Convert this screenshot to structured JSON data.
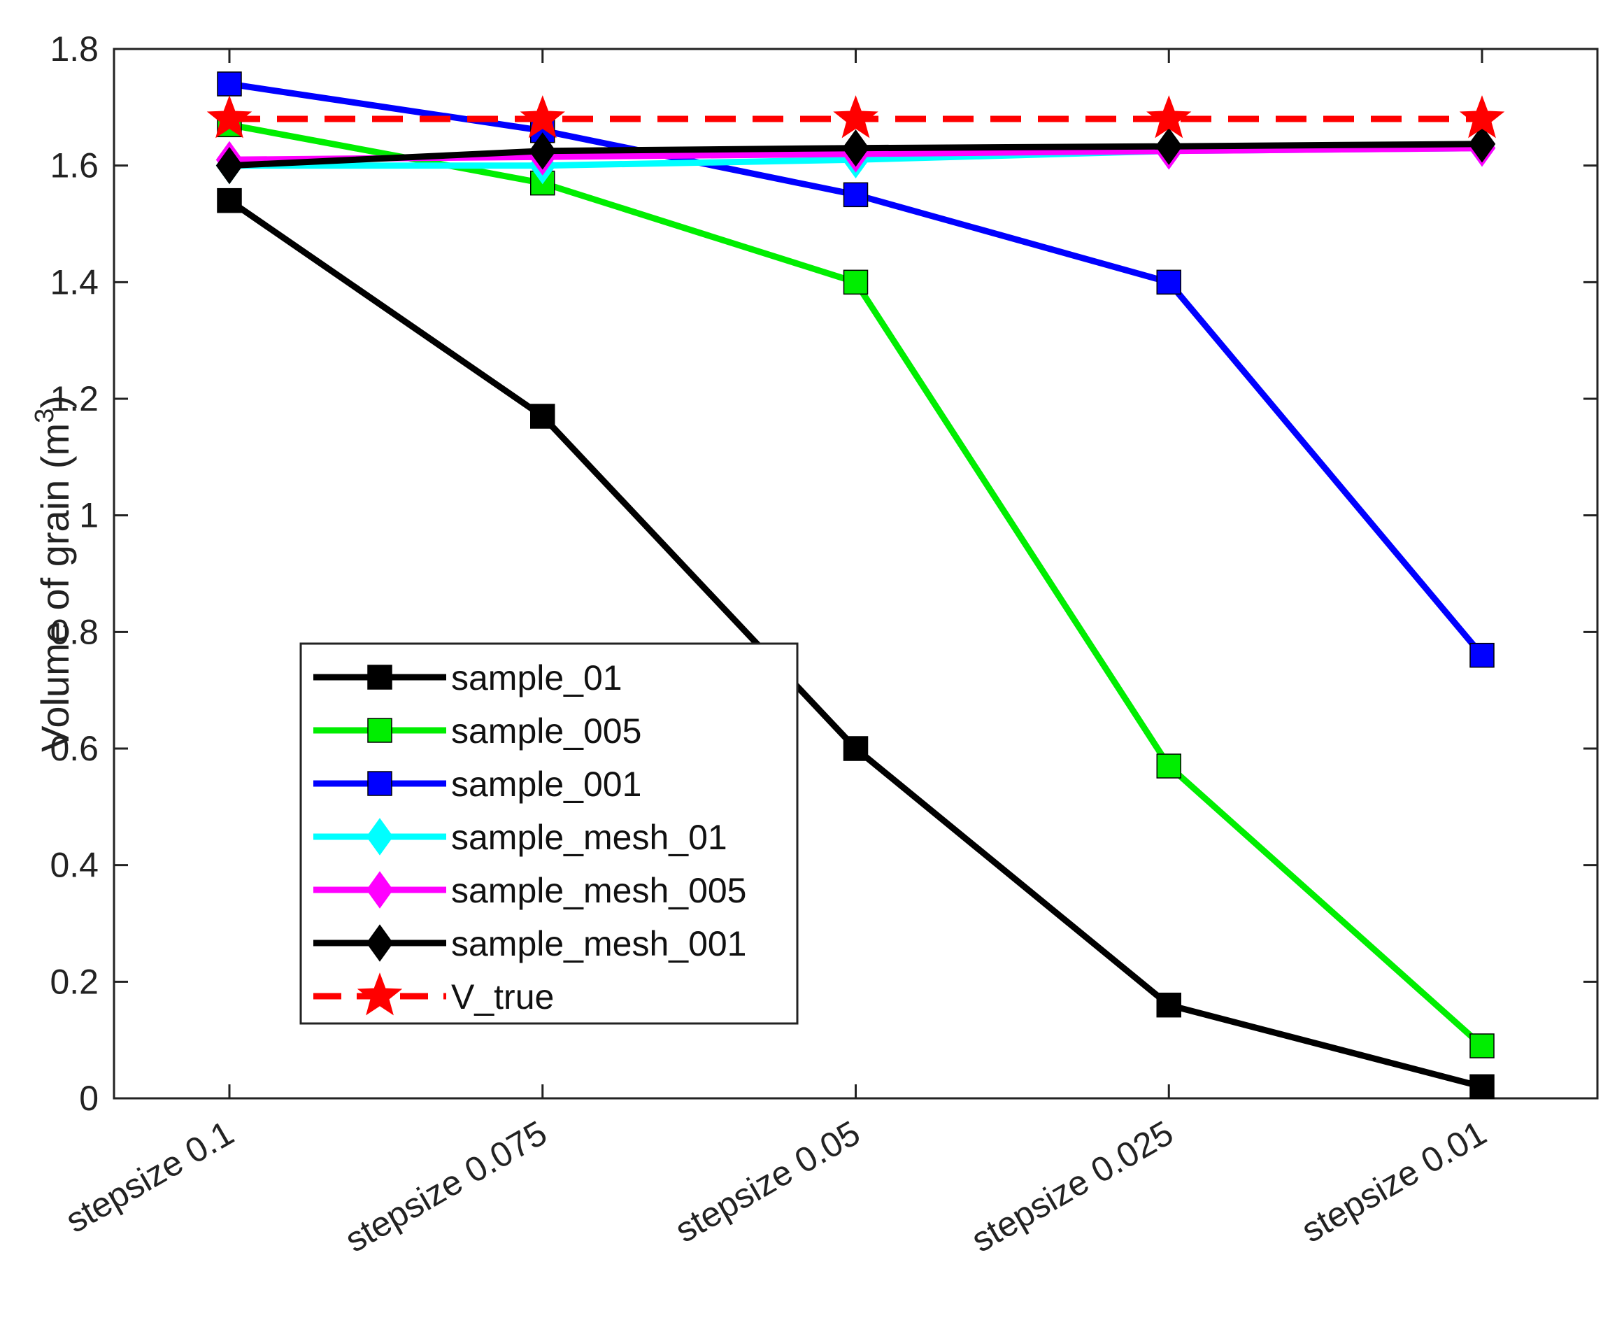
{
  "chart_data": {
    "type": "line",
    "title": "",
    "xlabel": "",
    "ylabel": "Volume of grain (m",
    "ylabel_superscript": "3",
    "ylabel_close": ")",
    "categories": [
      "stepsize 0.1",
      "stepsize 0.075",
      "stepsize 0.05",
      "stepsize 0.025",
      "stepsize 0.01"
    ],
    "ylim": [
      0,
      1.8
    ],
    "yticks": [
      0,
      0.2,
      0.4,
      0.6,
      0.8,
      1,
      1.2,
      1.4,
      1.6,
      1.8
    ],
    "ytick_labels": [
      "0",
      "0.2",
      "0.4",
      "0.6",
      "0.8",
      "1",
      "1.2",
      "1.4",
      "1.6",
      "1.8"
    ],
    "grid": false,
    "legend_position": "lower-left",
    "series": [
      {
        "name": "sample_01",
        "values": [
          1.54,
          1.17,
          0.6,
          0.16,
          0.02
        ],
        "color": "#000000",
        "marker": "square",
        "dashed": false
      },
      {
        "name": "sample_005",
        "values": [
          1.67,
          1.57,
          1.4,
          0.57,
          0.09
        ],
        "color": "#00ee00",
        "marker": "square",
        "dashed": false
      },
      {
        "name": "sample_001",
        "values": [
          1.74,
          1.66,
          1.55,
          1.4,
          0.76
        ],
        "color": "#0000ff",
        "marker": "square",
        "dashed": false
      },
      {
        "name": "sample_mesh_01",
        "values": [
          1.6,
          1.6,
          1.61,
          1.625,
          1.63
        ],
        "color": "#00ffff",
        "marker": "diamond",
        "dashed": false
      },
      {
        "name": "sample_mesh_005",
        "values": [
          1.61,
          1.615,
          1.62,
          1.625,
          1.63
        ],
        "color": "#ff00ff",
        "marker": "diamond",
        "dashed": false
      },
      {
        "name": "sample_mesh_001",
        "values": [
          1.6,
          1.625,
          1.63,
          1.633,
          1.637
        ],
        "color": "#000000",
        "marker": "diamond",
        "dashed": false
      },
      {
        "name": "V_true",
        "values": [
          1.68,
          1.68,
          1.68,
          1.68,
          1.68
        ],
        "color": "#ff0000",
        "marker": "star",
        "dashed": true
      }
    ]
  }
}
